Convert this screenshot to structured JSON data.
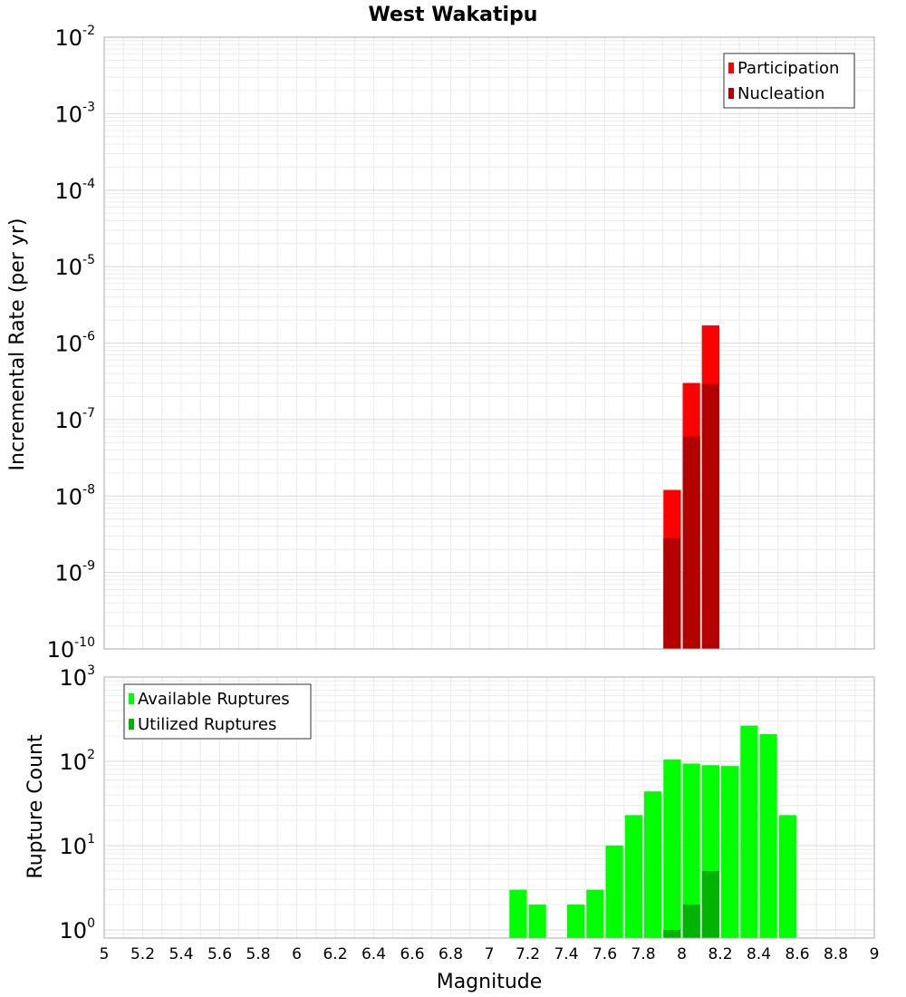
{
  "chart_data": [
    {
      "id": "rate",
      "type": "bar",
      "title": "West Wakatipu",
      "xlabel": "",
      "ylabel": "Incremental Rate (per yr)",
      "yscale": "log",
      "ylim": [
        1e-10,
        0.01
      ],
      "xlim": [
        5,
        9
      ],
      "y_ticks": [
        {
          "base": "10",
          "exp": "-10"
        },
        {
          "base": "10",
          "exp": "-9"
        },
        {
          "base": "10",
          "exp": "-8"
        },
        {
          "base": "10",
          "exp": "-7"
        },
        {
          "base": "10",
          "exp": "-6"
        },
        {
          "base": "10",
          "exp": "-5"
        },
        {
          "base": "10",
          "exp": "-4"
        },
        {
          "base": "10",
          "exp": "-3"
        },
        {
          "base": "10",
          "exp": "-2"
        }
      ],
      "legend_position": "top-right",
      "series": [
        {
          "name": "Participation",
          "color": "#ff0000",
          "points": [
            {
              "x": 7.95,
              "y": 1.2e-08
            },
            {
              "x": 8.05,
              "y": 3e-07
            },
            {
              "x": 8.15,
              "y": 1.7e-06
            }
          ]
        },
        {
          "name": "Nucleation",
          "color": "#b30000",
          "points": [
            {
              "x": 7.95,
              "y": 2.8e-09
            },
            {
              "x": 8.05,
              "y": 6e-08
            },
            {
              "x": 8.15,
              "y": 2.9e-07
            }
          ]
        }
      ]
    },
    {
      "id": "count",
      "type": "bar",
      "title": "",
      "xlabel": "Magnitude",
      "ylabel": "Rupture Count",
      "yscale": "log",
      "ylim": [
        0.8,
        1000
      ],
      "xlim": [
        5,
        9
      ],
      "x_ticks": [
        "5",
        "5.2",
        "5.4",
        "5.6",
        "5.8",
        "6",
        "6.2",
        "6.4",
        "6.6",
        "6.8",
        "7",
        "7.2",
        "7.4",
        "7.6",
        "7.8",
        "8",
        "8.2",
        "8.4",
        "8.6",
        "8.8",
        "9"
      ],
      "y_ticks": [
        {
          "base": "10",
          "exp": "0"
        },
        {
          "base": "10",
          "exp": "1"
        },
        {
          "base": "10",
          "exp": "2"
        },
        {
          "base": "10",
          "exp": "3"
        }
      ],
      "legend_position": "top-left",
      "series": [
        {
          "name": "Available Ruptures",
          "color": "#00ff00",
          "points": [
            {
              "x": 7.15,
              "y": 3
            },
            {
              "x": 7.25,
              "y": 2
            },
            {
              "x": 7.45,
              "y": 2
            },
            {
              "x": 7.55,
              "y": 3
            },
            {
              "x": 7.65,
              "y": 10
            },
            {
              "x": 7.75,
              "y": 23
            },
            {
              "x": 7.85,
              "y": 44
            },
            {
              "x": 7.95,
              "y": 105
            },
            {
              "x": 8.05,
              "y": 94
            },
            {
              "x": 8.15,
              "y": 90
            },
            {
              "x": 8.25,
              "y": 88
            },
            {
              "x": 8.35,
              "y": 265
            },
            {
              "x": 8.45,
              "y": 210
            },
            {
              "x": 8.55,
              "y": 23
            }
          ]
        },
        {
          "name": "Utilized Ruptures",
          "color": "#00b300",
          "points": [
            {
              "x": 7.95,
              "y": 1
            },
            {
              "x": 8.05,
              "y": 2
            },
            {
              "x": 8.15,
              "y": 5
            }
          ]
        }
      ]
    }
  ]
}
